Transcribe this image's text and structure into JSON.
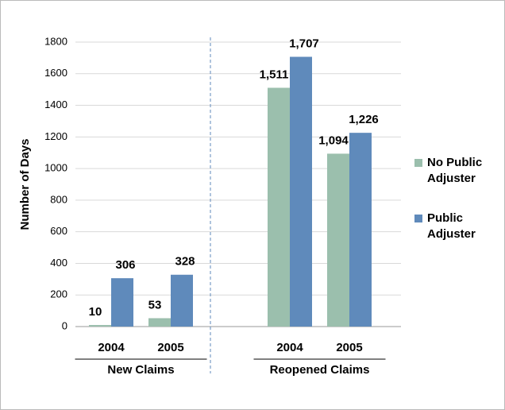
{
  "chart_data": {
    "type": "bar",
    "y_label": "Number of Days",
    "categories": [
      "2004",
      "2005",
      null,
      "2004",
      "2005"
    ],
    "group_labels": [
      "New Claims",
      "Reopened Claims"
    ],
    "series": [
      {
        "name": "No Public Adjuster",
        "color": "#9bbfad",
        "values": [
          10,
          53,
          null,
          1511,
          1094
        ],
        "value_labels": [
          "10",
          "53",
          null,
          "1,511",
          "1,094"
        ]
      },
      {
        "name": "Public Adjuster",
        "color": "#5f8abb",
        "values": [
          306,
          328,
          null,
          1707,
          1226
        ],
        "value_labels": [
          "306",
          "328",
          null,
          "1,707",
          "1,226"
        ]
      }
    ],
    "ylim": [
      0,
      1800
    ],
    "yticks": [
      0,
      200,
      400,
      600,
      800,
      1000,
      1200,
      1400,
      1600,
      1800
    ],
    "grid": true,
    "legend": "right"
  }
}
